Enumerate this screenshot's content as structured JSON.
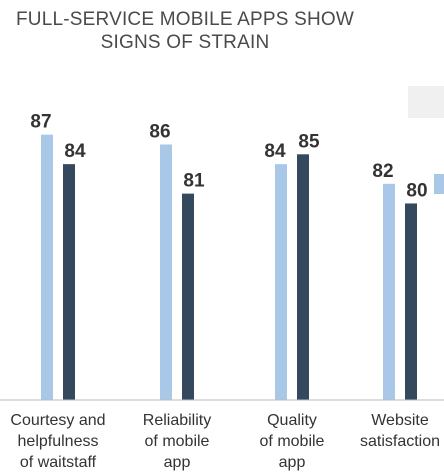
{
  "chart_data": {
    "type": "bar",
    "title_lines": [
      "FULL-SERVICE MOBILE APPS SHOW",
      "SIGNS OF STRAIN"
    ],
    "categories": [
      [
        "Courtesy and",
        "helpfulness",
        "of waitstaff"
      ],
      [
        "Reliability",
        "of mobile",
        "app"
      ],
      [
        "Quality",
        "of mobile",
        "app"
      ],
      [
        "Website",
        "satisfaction"
      ]
    ],
    "series": [
      {
        "color": "#a9c8e8",
        "values": [
          87,
          86,
          84,
          82
        ]
      },
      {
        "color": "#34495e",
        "values": [
          84,
          81,
          85,
          80
        ]
      }
    ],
    "ylim": [
      60,
      89
    ],
    "grid": false,
    "legend_position": "top-right",
    "baseline_color": "#bbbbbb",
    "legend_background": "#f0f0f0"
  }
}
